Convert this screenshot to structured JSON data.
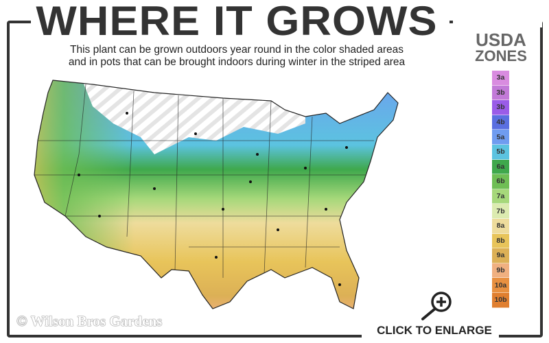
{
  "title": "WHERE IT GROWS",
  "subtitle_line1": "This plant can be grown outdoors year round in the color shaded areas",
  "subtitle_line2": "and in pots that can be brought indoors during winter in the striped area",
  "legend": {
    "title_line1": "USDA",
    "title_line2": "ZONES",
    "zones": [
      {
        "label": "3a",
        "color": "#d98ce0"
      },
      {
        "label": "3b",
        "color": "#c27ad8"
      },
      {
        "label": "3b",
        "color": "#9a5ce8"
      },
      {
        "label": "4b",
        "color": "#5a6fe0"
      },
      {
        "label": "5a",
        "color": "#6f9cf0"
      },
      {
        "label": "5b",
        "color": "#5cc3e0"
      },
      {
        "label": "6a",
        "color": "#3fa84c"
      },
      {
        "label": "6b",
        "color": "#6fbe55"
      },
      {
        "label": "7a",
        "color": "#a6d87a"
      },
      {
        "label": "7b",
        "color": "#dcebb0"
      },
      {
        "label": "8a",
        "color": "#eedc9c"
      },
      {
        "label": "8b",
        "color": "#e8c45a"
      },
      {
        "label": "9a",
        "color": "#dcb056"
      },
      {
        "label": "9b",
        "color": "#f0b080"
      },
      {
        "label": "10a",
        "color": "#e89040"
      },
      {
        "label": "10b",
        "color": "#e07f30"
      }
    ]
  },
  "watermark": "© Wilson Bros Gardens",
  "enlarge_label": "CLICK TO ENLARGE",
  "icons": {
    "enlarge": "magnifier-plus-icon"
  }
}
